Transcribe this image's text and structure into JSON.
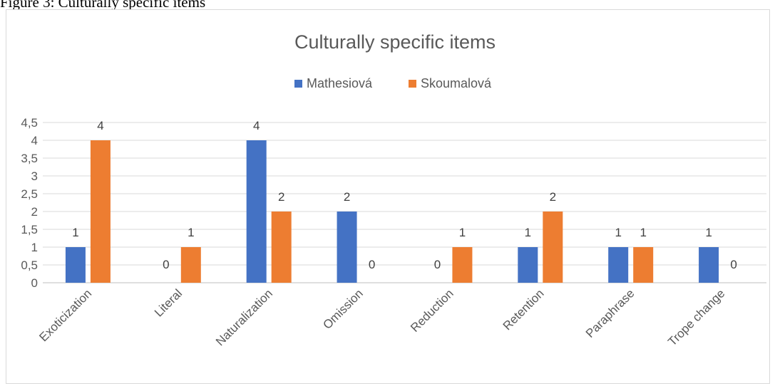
{
  "caption": "Figure 3: Culturally specific items",
  "chart_data": {
    "type": "bar",
    "title": "Culturally specific items",
    "xlabel": "",
    "ylabel": "",
    "categories": [
      "Exoticization",
      "Literal",
      "Naturalization",
      "Omission",
      "Reduction",
      "Retention",
      "Paraphrase",
      "Trope change"
    ],
    "series": [
      {
        "name": "Mathesiová",
        "values": [
          1,
          0,
          4,
          2,
          0,
          1,
          1,
          1
        ],
        "color": "#4472c4"
      },
      {
        "name": "Skoumalová",
        "values": [
          4,
          1,
          2,
          0,
          1,
          2,
          1,
          0
        ],
        "color": "#ed7d31"
      }
    ],
    "ylim": [
      0,
      4.5
    ],
    "yticks": [
      "0",
      "0,5",
      "1",
      "1,5",
      "2",
      "2,5",
      "3",
      "3,5",
      "4",
      "4,5"
    ],
    "grid": true,
    "legend": "top-center",
    "data_labels": true
  }
}
